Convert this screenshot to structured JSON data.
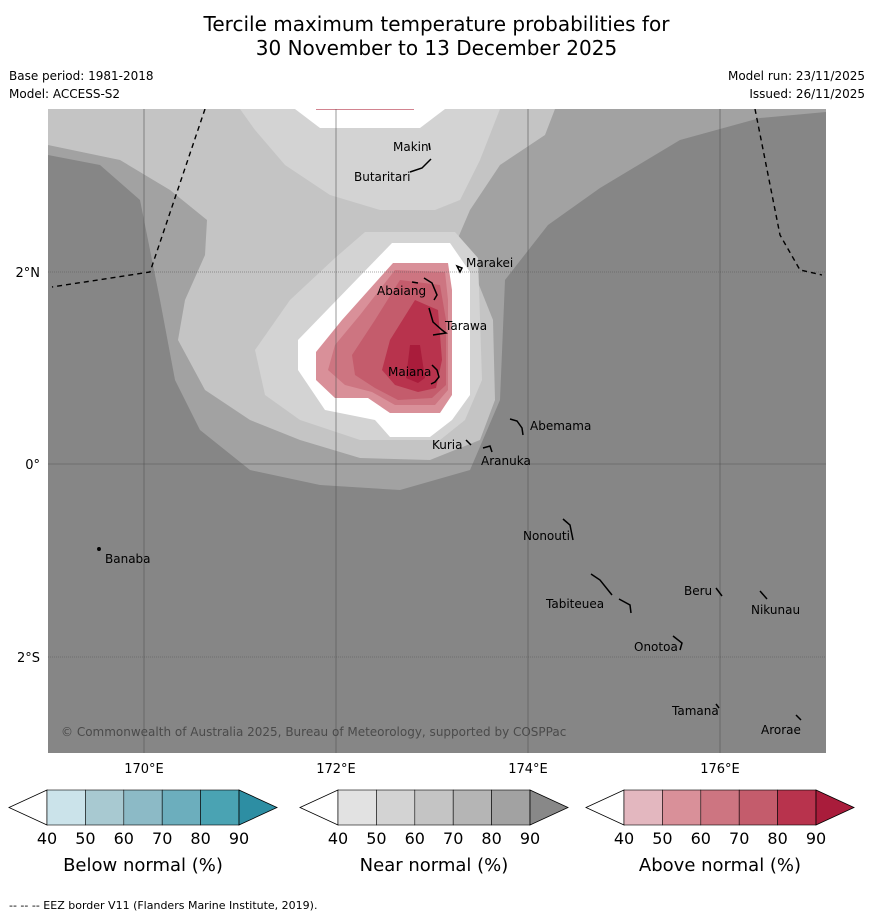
{
  "title": {
    "line1": "Tercile maximum temperature probabilities for",
    "line2": "30 November to 13 December 2025"
  },
  "meta": {
    "base_period": "Base period: 1981-2018",
    "model": "Model: ACCESS-S2",
    "model_run": "Model run: 23/11/2025",
    "issued": "Issued: 26/11/2025"
  },
  "map": {
    "copyright": "© Commonwealth of Australia 2025, Bureau of Meteorology, supported by COSPPac",
    "lat_labels": {
      "n2": "2°N",
      "eq": "0°",
      "s2": "2°S"
    },
    "lon_labels": {
      "e170": "170°E",
      "e172": "172°E",
      "e174": "174°E",
      "e176": "176°E"
    },
    "places": {
      "makin": "Makin",
      "butaritari": "Butaritari",
      "marakei": "Marakei",
      "abaiang": "Abaiang",
      "tarawa": "Tarawa",
      "maiana": "Maiana",
      "abemama": "Abemama",
      "kuria": "Kuria",
      "aranuka": "Aranuka",
      "nonouti": "Nonouti",
      "banaba": "Banaba",
      "beru": "Beru",
      "nikunau": "Nikunau",
      "tabiteuea": "Tabiteuea",
      "onotoa": "Onotoa",
      "tamana": "Tamana",
      "arorae": "Arorae"
    }
  },
  "legend": {
    "below": {
      "title": "Below normal (%)",
      "ticks": [
        "40",
        "50",
        "60",
        "70",
        "80",
        "90"
      ],
      "colors": [
        "#ffffff",
        "#cbe3ea",
        "#a8c9d1",
        "#8cbac6",
        "#6caebd",
        "#4aa3b3",
        "#2d8ea3"
      ]
    },
    "near": {
      "title": "Near normal (%)",
      "ticks": [
        "40",
        "50",
        "60",
        "70",
        "80",
        "90"
      ],
      "colors": [
        "#ffffff",
        "#e2e2e2",
        "#d3d3d3",
        "#c4c4c4",
        "#b5b5b5",
        "#a2a2a2",
        "#888888"
      ]
    },
    "above": {
      "title": "Above normal (%)",
      "ticks": [
        "40",
        "50",
        "60",
        "70",
        "80",
        "90"
      ],
      "colors": [
        "#ffffff",
        "#e3b7bf",
        "#d99099",
        "#cd7581",
        "#c45c6c",
        "#b8334d",
        "#a91c3b"
      ]
    }
  },
  "footer": "--  --  -- EEZ border V11 (Flanders Marine Institute, 2019)."
}
